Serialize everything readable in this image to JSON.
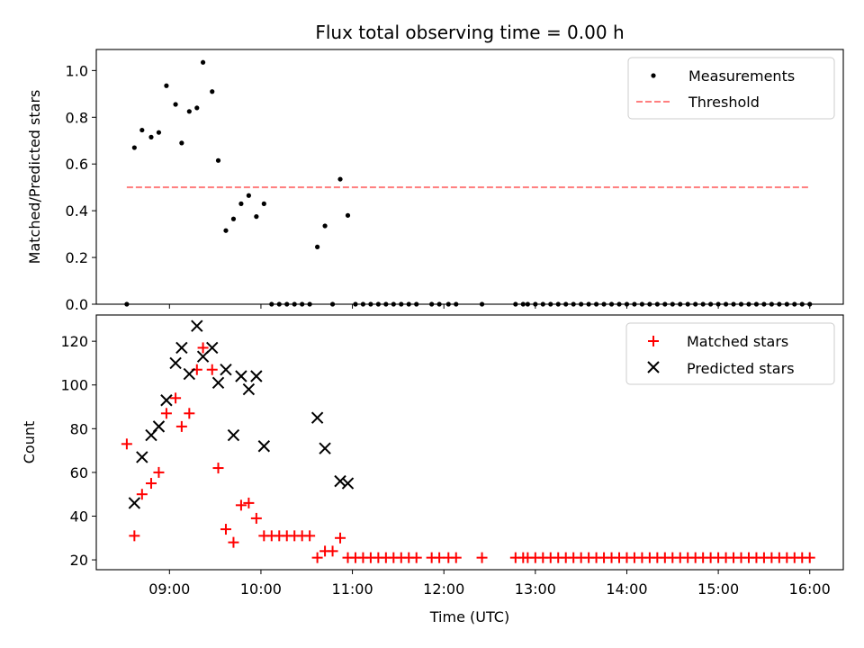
{
  "chart_data": [
    {
      "type": "scatter",
      "title": "Flux total observing time = 0.00 h",
      "xlabel": "",
      "ylabel": "Matched/Predicted stars",
      "xlim": [
        "08:12",
        "16:22"
      ],
      "ylim": [
        0,
        1.09
      ],
      "yticks": [
        "0.0",
        "0.2",
        "0.4",
        "0.6",
        "0.8",
        "1.0"
      ],
      "ytick_values": [
        0,
        0.2,
        0.4,
        0.6,
        0.8,
        1.0
      ],
      "legend": {
        "placement": "top-right",
        "entries": [
          "Measurements",
          "Threshold"
        ]
      },
      "series": [
        {
          "name": "Measurements",
          "marker": "dot",
          "color": "#000000",
          "points": [
            [
              "08:32",
              0.0
            ],
            [
              "08:37",
              0.67
            ],
            [
              "08:42",
              0.745
            ],
            [
              "08:48",
              0.715
            ],
            [
              "08:53",
              0.735
            ],
            [
              "08:58",
              0.935
            ],
            [
              "09:04",
              0.855
            ],
            [
              "09:08",
              0.69
            ],
            [
              "09:13",
              0.825
            ],
            [
              "09:18",
              0.84
            ],
            [
              "09:22",
              1.035
            ],
            [
              "09:28",
              0.91
            ],
            [
              "09:32",
              0.615
            ],
            [
              "09:37",
              0.315
            ],
            [
              "09:42",
              0.365
            ],
            [
              "09:47",
              0.43
            ],
            [
              "09:52",
              0.465
            ],
            [
              "09:57",
              0.375
            ],
            [
              "10:02",
              0.43
            ],
            [
              "10:07",
              0.0
            ],
            [
              "10:12",
              0.0
            ],
            [
              "10:17",
              0.0
            ],
            [
              "10:22",
              0.0
            ],
            [
              "10:27",
              0.0
            ],
            [
              "10:32",
              0.0
            ],
            [
              "10:37",
              0.245
            ],
            [
              "10:42",
              0.335
            ],
            [
              "10:47",
              0.0
            ],
            [
              "10:52",
              0.535
            ],
            [
              "10:57",
              0.38
            ],
            [
              "11:02",
              0.0
            ],
            [
              "11:07",
              0.0
            ],
            [
              "11:12",
              0.0
            ],
            [
              "11:17",
              0.0
            ],
            [
              "11:22",
              0.0
            ],
            [
              "11:27",
              0.0
            ],
            [
              "11:32",
              0.0
            ],
            [
              "11:37",
              0.0
            ],
            [
              "11:42",
              0.0
            ],
            [
              "11:52",
              0.0
            ],
            [
              "11:57",
              0.0
            ],
            [
              "12:03",
              0.0
            ],
            [
              "12:08",
              0.0
            ],
            [
              "12:25",
              0.0
            ],
            [
              "12:47",
              0.0
            ],
            [
              "12:52",
              0.0
            ],
            [
              "12:55",
              0.0
            ],
            [
              "13:00",
              0.0
            ],
            [
              "13:05",
              0.0
            ],
            [
              "13:10",
              0.0
            ],
            [
              "13:15",
              0.0
            ],
            [
              "13:20",
              0.0
            ],
            [
              "13:25",
              0.0
            ],
            [
              "13:30",
              0.0
            ],
            [
              "13:35",
              0.0
            ],
            [
              "13:40",
              0.0
            ],
            [
              "13:45",
              0.0
            ],
            [
              "13:50",
              0.0
            ],
            [
              "13:55",
              0.0
            ],
            [
              "14:00",
              0.0
            ],
            [
              "14:05",
              0.0
            ],
            [
              "14:10",
              0.0
            ],
            [
              "14:15",
              0.0
            ],
            [
              "14:20",
              0.0
            ],
            [
              "14:25",
              0.0
            ],
            [
              "14:30",
              0.0
            ],
            [
              "14:35",
              0.0
            ],
            [
              "14:40",
              0.0
            ],
            [
              "14:45",
              0.0
            ],
            [
              "14:50",
              0.0
            ],
            [
              "14:55",
              0.0
            ],
            [
              "15:00",
              0.0
            ],
            [
              "15:05",
              0.0
            ],
            [
              "15:10",
              0.0
            ],
            [
              "15:15",
              0.0
            ],
            [
              "15:20",
              0.0
            ],
            [
              "15:25",
              0.0
            ],
            [
              "15:30",
              0.0
            ],
            [
              "15:35",
              0.0
            ],
            [
              "15:40",
              0.0
            ],
            [
              "15:45",
              0.0
            ],
            [
              "15:50",
              0.0
            ],
            [
              "15:55",
              0.0
            ],
            [
              "16:00",
              0.0
            ]
          ]
        },
        {
          "name": "Threshold",
          "marker": "dashed-line",
          "color": "#ff7f7f",
          "points": [
            [
              "08:32",
              0.5
            ],
            [
              "16:00",
              0.5
            ]
          ]
        }
      ]
    },
    {
      "type": "scatter",
      "title": "",
      "xlabel": "Time (UTC)",
      "ylabel": "Count",
      "xlim": [
        "08:12",
        "16:22"
      ],
      "ylim": [
        15.5,
        132
      ],
      "xticks": [
        "09:00",
        "10:00",
        "11:00",
        "12:00",
        "13:00",
        "14:00",
        "15:00",
        "16:00"
      ],
      "yticks": [
        "20",
        "40",
        "60",
        "80",
        "100",
        "120"
      ],
      "ytick_values": [
        20,
        40,
        60,
        80,
        100,
        120
      ],
      "legend": {
        "placement": "top-right",
        "entries": [
          "Matched stars",
          "Predicted stars"
        ]
      },
      "series": [
        {
          "name": "Matched stars",
          "marker": "plus",
          "color": "#ff0000",
          "points": [
            [
              "08:32",
              73
            ],
            [
              "08:37",
              31
            ],
            [
              "08:42",
              50
            ],
            [
              "08:48",
              55
            ],
            [
              "08:53",
              60
            ],
            [
              "08:58",
              87
            ],
            [
              "09:04",
              94
            ],
            [
              "09:08",
              81
            ],
            [
              "09:13",
              87
            ],
            [
              "09:18",
              107
            ],
            [
              "09:22",
              117
            ],
            [
              "09:28",
              107
            ],
            [
              "09:32",
              62
            ],
            [
              "09:37",
              34
            ],
            [
              "09:42",
              28
            ],
            [
              "09:47",
              45
            ],
            [
              "09:52",
              46
            ],
            [
              "09:57",
              39
            ],
            [
              "10:02",
              31
            ],
            [
              "10:07",
              31
            ],
            [
              "10:12",
              31
            ],
            [
              "10:17",
              31
            ],
            [
              "10:22",
              31
            ],
            [
              "10:27",
              31
            ],
            [
              "10:32",
              31
            ],
            [
              "10:37",
              21
            ],
            [
              "10:42",
              24
            ],
            [
              "10:47",
              24
            ],
            [
              "10:52",
              30
            ],
            [
              "10:57",
              21
            ],
            [
              "11:02",
              21
            ],
            [
              "11:07",
              21
            ],
            [
              "11:12",
              21
            ],
            [
              "11:17",
              21
            ],
            [
              "11:22",
              21
            ],
            [
              "11:27",
              21
            ],
            [
              "11:32",
              21
            ],
            [
              "11:37",
              21
            ],
            [
              "11:42",
              21
            ],
            [
              "11:52",
              21
            ],
            [
              "11:57",
              21
            ],
            [
              "12:03",
              21
            ],
            [
              "12:08",
              21
            ],
            [
              "12:25",
              21
            ],
            [
              "12:47",
              21
            ],
            [
              "12:52",
              21
            ],
            [
              "12:55",
              21
            ],
            [
              "13:00",
              21
            ],
            [
              "13:05",
              21
            ],
            [
              "13:10",
              21
            ],
            [
              "13:15",
              21
            ],
            [
              "13:20",
              21
            ],
            [
              "13:25",
              21
            ],
            [
              "13:30",
              21
            ],
            [
              "13:35",
              21
            ],
            [
              "13:40",
              21
            ],
            [
              "13:45",
              21
            ],
            [
              "13:50",
              21
            ],
            [
              "13:55",
              21
            ],
            [
              "14:00",
              21
            ],
            [
              "14:05",
              21
            ],
            [
              "14:10",
              21
            ],
            [
              "14:15",
              21
            ],
            [
              "14:20",
              21
            ],
            [
              "14:25",
              21
            ],
            [
              "14:30",
              21
            ],
            [
              "14:35",
              21
            ],
            [
              "14:40",
              21
            ],
            [
              "14:45",
              21
            ],
            [
              "14:50",
              21
            ],
            [
              "14:55",
              21
            ],
            [
              "15:00",
              21
            ],
            [
              "15:05",
              21
            ],
            [
              "15:10",
              21
            ],
            [
              "15:15",
              21
            ],
            [
              "15:20",
              21
            ],
            [
              "15:25",
              21
            ],
            [
              "15:30",
              21
            ],
            [
              "15:35",
              21
            ],
            [
              "15:40",
              21
            ],
            [
              "15:45",
              21
            ],
            [
              "15:50",
              21
            ],
            [
              "15:55",
              21
            ],
            [
              "16:00",
              21
            ]
          ]
        },
        {
          "name": "Predicted stars",
          "marker": "x",
          "color": "#000000",
          "points": [
            [
              "08:37",
              46
            ],
            [
              "08:42",
              67
            ],
            [
              "08:48",
              77
            ],
            [
              "08:53",
              81
            ],
            [
              "08:58",
              93
            ],
            [
              "09:04",
              110
            ],
            [
              "09:08",
              117
            ],
            [
              "09:13",
              105
            ],
            [
              "09:18",
              127
            ],
            [
              "09:22",
              113
            ],
            [
              "09:28",
              117
            ],
            [
              "09:32",
              101
            ],
            [
              "09:37",
              107
            ],
            [
              "09:42",
              77
            ],
            [
              "09:47",
              104
            ],
            [
              "09:52",
              98
            ],
            [
              "09:57",
              104
            ],
            [
              "10:02",
              72
            ],
            [
              "10:37",
              85
            ],
            [
              "10:42",
              71
            ],
            [
              "10:52",
              56
            ],
            [
              "10:57",
              55
            ]
          ]
        }
      ]
    }
  ]
}
